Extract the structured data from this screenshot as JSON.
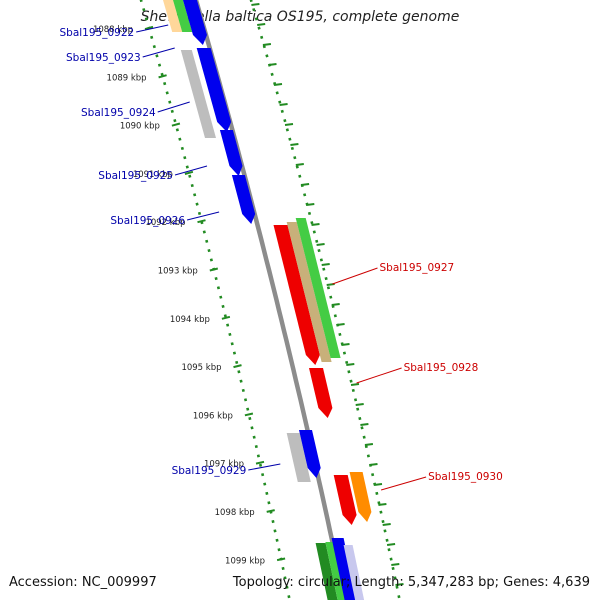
{
  "title": "Shewanella baltica OS195, complete genome",
  "footer": {
    "accession": "Accession: NC_009997",
    "summary": "Topology: circular; Length: 5,347,283 bp; Genes: 4,639"
  },
  "colors": {
    "backbone": "#8c8c8c",
    "tick": "#228b22",
    "label_left": "#0000aa",
    "label_right": "#cc0000",
    "blue": "#0000ee",
    "gray": "#bdbdbd",
    "red": "#ee0000",
    "green": "#44cc44",
    "darkgreen": "#228b22",
    "khaki": "#c8b07a",
    "orange": "#ff8c00",
    "peach": "#ffd79a",
    "lavender": "#c8c8ee"
  },
  "ticks": [
    "1088 kbp",
    "1089 kbp",
    "1090 kbp",
    "1091 kbp",
    "1092 kbp",
    "1093 kbp",
    "1094 kbp",
    "1095 kbp",
    "1096 kbp",
    "1097 kbp",
    "1098 kbp",
    "1099 kbp"
  ],
  "gene_labels_left": [
    "Sbal195_0922",
    "Sbal195_0923",
    "Sbal195_0924",
    "Sbal195_0925",
    "Sbal195_0926",
    "Sbal195_0929"
  ],
  "gene_labels_right": [
    "Sbal195_0927",
    "Sbal195_0928",
    "Sbal195_0930"
  ]
}
